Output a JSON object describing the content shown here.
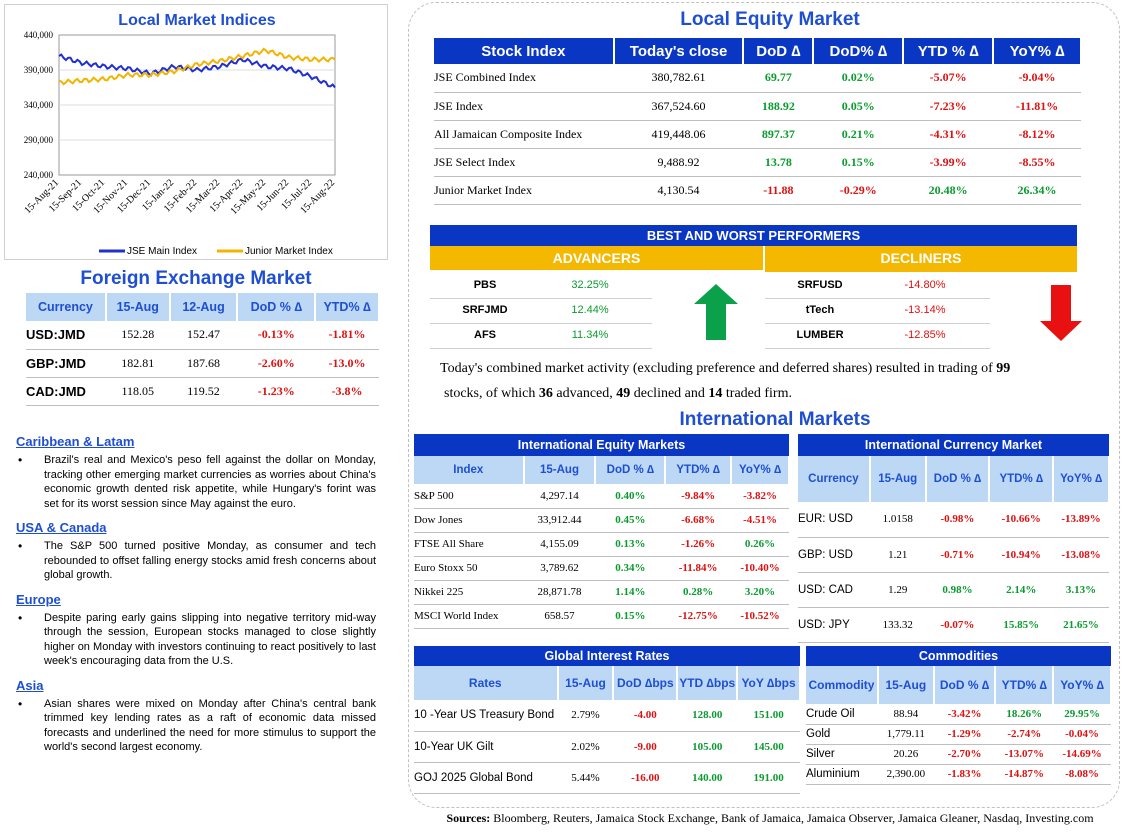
{
  "indices_chart": {
    "title": "Local Market Indices",
    "y_ticks": [
      "440,000",
      "390,000",
      "340,000",
      "290,000",
      "240,000"
    ],
    "x_ticks": [
      "15-Aug-21",
      "15-Sep-21",
      "15-Oct-21",
      "15-Nov-21",
      "15-Dec-21",
      "15-Jan-22",
      "15-Feb-22",
      "15-Mar-22",
      "15-Apr-22",
      "15-May-22",
      "15-Jun-22",
      "15-Jul-22",
      "15-Aug-22"
    ],
    "legend": [
      "JSE Main Index",
      "Junior Market Index"
    ],
    "colors": {
      "main": "#1f2fd0",
      "junior": "#f2b400"
    }
  },
  "chart_data": {
    "type": "line",
    "categories": [
      "15-Aug-21",
      "15-Sep-21",
      "15-Oct-21",
      "15-Nov-21",
      "15-Dec-21",
      "15-Jan-22",
      "15-Feb-22",
      "15-Mar-22",
      "15-Apr-22",
      "15-May-22",
      "15-Jun-22",
      "15-Jul-22",
      "15-Aug-22"
    ],
    "ylim": [
      240000,
      440000
    ],
    "series": [
      {
        "name": "JSE Main Index",
        "values": [
          410000,
          400000,
          395000,
          392000,
          385000,
          395000,
          390000,
          395000,
          405000,
          395000,
          392000,
          380000,
          365000
        ]
      },
      {
        "name": "Junior Market Index",
        "values": [
          372000,
          375000,
          377000,
          383000,
          383000,
          388000,
          398000,
          403000,
          410000,
          418000,
          408000,
          405000,
          405000
        ]
      }
    ]
  },
  "fx": {
    "title": "Foreign Exchange Market",
    "headers": [
      "Currency",
      "15-Aug",
      "12-Aug",
      "DoD % ∆",
      "YTD% ∆"
    ],
    "rows": [
      [
        "USD:JMD",
        "152.28",
        "152.47",
        "-0.13%",
        "-1.81%"
      ],
      [
        "GBP:JMD",
        "182.81",
        "187.68",
        "-2.60%",
        "-13.0%"
      ],
      [
        "CAD:JMD",
        "118.05",
        "119.52",
        "-1.23%",
        "-3.8%"
      ]
    ]
  },
  "news": [
    {
      "heading": "Caribbean & Latam",
      "text": "Brazil's real and Mexico's peso fell against the dollar on Monday, tracking other emerging market currencies as worries about China's economic growth dented risk appetite, while Hungary's forint was set for its worst session since May against the euro."
    },
    {
      "heading": "USA & Canada",
      "text": "The S&P 500 turned positive Monday, as consumer and tech rebounded to offset falling energy stocks amid fresh concerns about global growth."
    },
    {
      "heading": "Europe",
      "text": "Despite paring early gains slipping into negative territory mid-way through the session, European stocks managed to close slightly higher on Monday with investors continuing to react positively to last week's encouraging data from the U.S."
    },
    {
      "heading": "Asia",
      "text": "Asian shares were mixed on Monday after China's central bank trimmed key lending rates as a raft of economic data missed forecasts and underlined the need for more stimulus to support the world's second largest economy."
    }
  ],
  "local_equity": {
    "title": "Local Equity Market",
    "headers": [
      "Stock Index",
      "Today's close",
      "DoD  ∆",
      "DoD% ∆",
      "YTD % ∆",
      "YoY% ∆"
    ],
    "rows": [
      [
        "JSE Combined Index",
        "380,782.61",
        "69.77",
        "0.02%",
        "-5.07%",
        "-9.04%"
      ],
      [
        "JSE Index",
        "367,524.60",
        "188.92",
        "0.05%",
        "-7.23%",
        "-11.81%"
      ],
      [
        "All Jamaican Composite Index",
        "419,448.06",
        "897.37",
        "0.21%",
        "-4.31%",
        "-8.12%"
      ],
      [
        "JSE Select Index",
        "9,488.92",
        "13.78",
        "0.15%",
        "-3.99%",
        "-8.55%"
      ],
      [
        "Junior Market Index",
        "4,130.54",
        "-11.88",
        "-0.29%",
        "20.48%",
        "26.34%"
      ]
    ]
  },
  "performers": {
    "title": "BEST AND WORST PERFORMERS",
    "advancers_label": "ADVANCERS",
    "decliners_label": "DECLINERS",
    "advancers": [
      [
        "PBS",
        "32.25%"
      ],
      [
        "SRFJMD",
        "12.44%"
      ],
      [
        "AFS",
        "11.34%"
      ]
    ],
    "decliners": [
      [
        "SRFUSD",
        "-14.80%"
      ],
      [
        "tTech",
        "-13.14%"
      ],
      [
        "LUMBER",
        "-12.85%"
      ]
    ],
    "colors": {
      "up": "#0aa14a",
      "down": "#e81010",
      "band": "#f5b800"
    }
  },
  "summary": {
    "p1": "Today's combined market activity (excluding preference and deferred shares) resulted in trading of ",
    "total": "99",
    "p2": " stocks, of which ",
    "advanced": "36",
    "p3": " advanced, ",
    "declined": "49",
    "p4": " declined and ",
    "firm": "14",
    "p5": " traded firm."
  },
  "intl_title": "International Markets",
  "intl_equity": {
    "title": "International Equity Markets",
    "headers": [
      "Index",
      "15-Aug",
      "DoD % ∆",
      "YTD% ∆",
      "YoY% ∆"
    ],
    "rows": [
      [
        "S&P 500",
        "4,297.14",
        "0.40%",
        "-9.84%",
        "-3.82%"
      ],
      [
        "Dow Jones",
        "33,912.44",
        "0.45%",
        "-6.68%",
        "-4.51%"
      ],
      [
        "FTSE All Share",
        "4,155.09",
        "0.13%",
        "-1.26%",
        "0.26%"
      ],
      [
        "Euro Stoxx 50",
        "3,789.62",
        "0.34%",
        "-11.84%",
        "-10.40%"
      ],
      [
        "Nikkei 225",
        "28,871.78",
        "1.14%",
        "0.28%",
        "3.20%"
      ],
      [
        "MSCI World Index",
        "658.57",
        "0.15%",
        "-12.75%",
        "-10.52%"
      ]
    ]
  },
  "intl_currency": {
    "title": "International Currency Market",
    "headers": [
      "Currency",
      "15-Aug",
      "DoD % ∆",
      "YTD% ∆",
      "YoY% ∆"
    ],
    "rows": [
      [
        "EUR: USD",
        "1.0158",
        "-0.98%",
        "-10.66%",
        "-13.89%"
      ],
      [
        "GBP: USD",
        "1.21",
        "-0.71%",
        "-10.94%",
        "-13.08%"
      ],
      [
        "USD: CAD",
        "1.29",
        "0.98%",
        "2.14%",
        "3.13%"
      ],
      [
        "USD: JPY",
        "133.32",
        "-0.07%",
        "15.85%",
        "21.65%"
      ]
    ]
  },
  "rates": {
    "title": "Global Interest Rates",
    "headers": [
      "Rates",
      "15-Aug",
      "DoD ∆bps",
      "YTD ∆bps",
      "YoY ∆bps"
    ],
    "rows": [
      [
        "10 -Year US Treasury Bond",
        "2.79%",
        "-4.00",
        "128.00",
        "151.00"
      ],
      [
        "10-Year UK Gilt",
        "2.02%",
        "-9.00",
        "105.00",
        "145.00"
      ],
      [
        "GOJ 2025 Global Bond",
        "5.44%",
        "-16.00",
        "140.00",
        "191.00"
      ]
    ]
  },
  "commodities": {
    "title": "Commodities",
    "headers": [
      "Commodity",
      "15-Aug",
      "DoD % ∆",
      "YTD% ∆",
      "YoY% ∆"
    ],
    "rows": [
      [
        "Crude Oil",
        "88.94",
        "-3.42%",
        "18.26%",
        "29.95%"
      ],
      [
        "Gold",
        "1,779.11",
        "-1.29%",
        "-2.74%",
        "-0.04%"
      ],
      [
        "Silver",
        "20.26",
        "-2.70%",
        "-13.07%",
        "-14.69%"
      ],
      [
        "Aluminium",
        "2,390.00",
        "-1.83%",
        "-14.87%",
        "-8.08%"
      ]
    ]
  },
  "sources": {
    "label": "Sources:",
    "text": " Bloomberg, Reuters, Jamaica Stock Exchange, Bank of Jamaica, Jamaica Observer, Jamaica Gleaner, Nasdaq, Investing.com"
  }
}
